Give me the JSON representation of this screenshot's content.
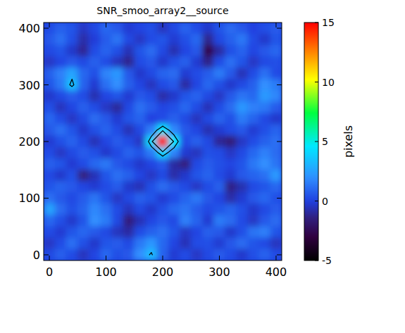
{
  "chart_data": {
    "type": "heatmap",
    "title": "SNR_smoo_array2__source",
    "x": [
      0,
      20,
      40,
      60,
      80,
      100,
      120,
      140,
      160,
      180,
      200,
      220,
      240,
      260,
      280,
      300,
      320,
      340,
      360,
      380,
      400
    ],
    "y": [
      400,
      380,
      360,
      340,
      320,
      300,
      280,
      260,
      240,
      220,
      200,
      180,
      160,
      140,
      120,
      100,
      80,
      60,
      40,
      20,
      0
    ],
    "z": [
      [
        0.3,
        0.8,
        0.5,
        -0.4,
        0.2,
        1.0,
        0.6,
        -0.2,
        0.1,
        0.4,
        -0.5,
        0.2,
        0.9,
        0.3,
        -0.3,
        0.5,
        1.1,
        0.6,
        0.0,
        0.4,
        0.7
      ],
      [
        0.6,
        1.2,
        0.4,
        -0.8,
        -0.1,
        0.7,
        1.3,
        0.2,
        -0.4,
        0.3,
        0.5,
        -0.2,
        0.4,
        1.0,
        -1.2,
        0.2,
        0.8,
        1.4,
        0.3,
        -0.3,
        0.5
      ],
      [
        0.2,
        0.5,
        -0.3,
        -1.1,
        0.3,
        0.9,
        0.4,
        -0.6,
        0.5,
        1.1,
        0.2,
        -0.7,
        0.1,
        0.6,
        -2.8,
        -0.9,
        0.4,
        0.9,
        0.1,
        0.6,
        1.0
      ],
      [
        -0.4,
        0.1,
        0.6,
        0.2,
        0.8,
        0.3,
        -0.5,
        -1.2,
        0.3,
        0.6,
        -0.3,
        0.4,
        0.8,
        -0.2,
        -1.3,
        0.3,
        1.2,
        0.5,
        -0.4,
        0.2,
        0.4
      ],
      [
        0.8,
        1.6,
        2.6,
        1.0,
        0.4,
        1.7,
        2.2,
        0.6,
        -0.3,
        0.2,
        0.9,
        1.1,
        -0.2,
        0.3,
        0.7,
        1.5,
        0.6,
        -0.6,
        0.3,
        1.2,
        0.3
      ],
      [
        0.5,
        1.4,
        3.4,
        0.9,
        -0.2,
        1.2,
        2.0,
        0.8,
        0.1,
        -0.5,
        0.3,
        0.6,
        -0.9,
        0.1,
        1.0,
        0.4,
        -0.3,
        0.2,
        0.8,
        2.0,
        1.5
      ],
      [
        -0.3,
        0.2,
        0.7,
        0.3,
        -0.7,
        0.1,
        0.5,
        -0.2,
        0.6,
        0.3,
        -0.8,
        -0.3,
        0.5,
        0.9,
        0.2,
        -0.4,
        0.6,
        1.3,
        1.0,
        2.3,
        1.8
      ],
      [
        0.4,
        -0.5,
        0.1,
        0.8,
        0.3,
        -0.4,
        -1.0,
        0.2,
        1.2,
        0.7,
        0.1,
        0.4,
        1.0,
        0.3,
        -0.6,
        0.3,
        1.1,
        2.2,
        1.6,
        1.4,
        0.7
      ],
      [
        1.0,
        0.3,
        -0.4,
        0.2,
        1.1,
        0.6,
        -0.2,
        0.5,
        0.9,
        0.0,
        0.3,
        0.8,
        0.2,
        -0.5,
        0.2,
        0.9,
        0.4,
        1.5,
        0.9,
        0.2,
        -0.3
      ],
      [
        0.6,
        1.2,
        0.5,
        -0.3,
        0.4,
        0.9,
        0.3,
        -0.6,
        0.2,
        1.6,
        4.5,
        1.8,
        0.6,
        0.1,
        -0.7,
        -0.2,
        0.3,
        0.6,
        -0.2,
        0.4,
        0.9
      ],
      [
        -0.2,
        0.4,
        0.9,
        0.2,
        -0.6,
        0.1,
        0.7,
        0.3,
        -0.4,
        4.2,
        15.0,
        4.6,
        0.3,
        0.8,
        0.2,
        -1.1,
        -1.6,
        -0.4,
        0.3,
        0.8,
        1.2
      ],
      [
        0.3,
        -0.4,
        0.2,
        0.7,
        0.4,
        -0.3,
        0.2,
        0.9,
        0.5,
        1.5,
        4.0,
        1.7,
        -0.2,
        -0.5,
        0.4,
        0.3,
        -0.4,
        0.2,
        1.0,
        1.6,
        1.1
      ],
      [
        0.8,
        0.5,
        -0.2,
        0.3,
        1.0,
        1.4,
        0.6,
        0.2,
        -0.3,
        0.1,
        0.6,
        -0.9,
        -1.4,
        0.2,
        0.7,
        0.4,
        0.1,
        0.5,
        1.4,
        2.0,
        1.3
      ],
      [
        0.2,
        -0.3,
        0.4,
        -1.4,
        -0.6,
        0.5,
        1.2,
        0.8,
        0.1,
        -0.4,
        0.2,
        -0.8,
        -0.3,
        0.5,
        0.9,
        0.3,
        -0.2,
        0.6,
        0.9,
        1.2,
        2.3
      ],
      [
        0.5,
        0.9,
        0.6,
        0.1,
        -0.2,
        0.3,
        0.7,
        -0.3,
        -0.6,
        0.4,
        1.1,
        0.6,
        0.2,
        -0.4,
        0.3,
        0.8,
        -1.3,
        -0.7,
        0.2,
        0.5,
        1.0
      ],
      [
        1.2,
        0.6,
        0.2,
        0.7,
        1.3,
        0.5,
        -0.4,
        0.2,
        0.8,
        0.5,
        -0.2,
        0.3,
        0.9,
        1.4,
        0.6,
        0.1,
        -0.8,
        -0.2,
        0.6,
        1.0,
        0.4
      ],
      [
        2.6,
        1.1,
        0.4,
        0.9,
        1.8,
        1.2,
        0.3,
        -0.5,
        0.2,
        -0.3,
        0.4,
        1.0,
        1.3,
        0.7,
        0.2,
        0.5,
        0.9,
        0.4,
        -0.3,
        0.2,
        0.7
      ],
      [
        1.0,
        0.4,
        -0.3,
        0.5,
        2.0,
        1.5,
        0.2,
        -1.5,
        -0.6,
        0.1,
        0.6,
        0.2,
        1.6,
        0.9,
        -0.2,
        1.5,
        1.1,
        0.3,
        -0.4,
        0.6,
        1.1
      ],
      [
        0.3,
        -0.2,
        0.5,
        1.0,
        0.6,
        0.2,
        -0.5,
        -0.9,
        0.3,
        0.8,
        1.2,
        0.5,
        -0.4,
        0.1,
        0.8,
        0.6,
        -0.3,
        0.4,
        1.3,
        1.6,
        0.5
      ],
      [
        -0.4,
        0.3,
        1.2,
        0.4,
        -0.3,
        0.5,
        0.7,
        0.2,
        1.4,
        2.2,
        1.0,
        0.1,
        -0.6,
        0.3,
        0.4,
        -0.2,
        0.6,
        1.1,
        0.5,
        0.2,
        -0.5
      ],
      [
        0.2,
        0.8,
        0.3,
        -0.5,
        0.1,
        1.0,
        0.4,
        0.6,
        2.0,
        3.2,
        0.9,
        -0.2,
        0.3,
        -0.4,
        0.2,
        0.7,
        0.3,
        -0.3,
        0.4,
        0.9,
        0.3
      ]
    ],
    "xlim": [
      -10,
      410
    ],
    "ylim": [
      -10,
      410
    ],
    "xticks": [
      0,
      100,
      200,
      300,
      400
    ],
    "yticks": [
      0,
      100,
      200,
      300,
      400
    ],
    "contour_levels": [
      3,
      5
    ],
    "colorbar_label": "pixels",
    "colorbar_range": [
      -5,
      15
    ],
    "colorbar_ticks": [
      -5,
      0,
      5,
      10,
      15
    ]
  }
}
